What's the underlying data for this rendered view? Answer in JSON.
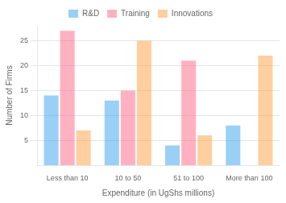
{
  "chart_data": {
    "type": "bar",
    "categories": [
      "Less than 10",
      "10 to 50",
      "51 to 100",
      "More than 100"
    ],
    "series": [
      {
        "name": "R&D",
        "values": [
          14,
          13,
          4,
          8
        ]
      },
      {
        "name": "Training",
        "values": [
          27,
          15,
          21,
          0
        ]
      },
      {
        "name": "Innovations",
        "values": [
          7,
          25,
          6,
          22
        ]
      }
    ],
    "xlabel": "Expenditure (in UgShs millions)",
    "ylabel": "Number of Firms",
    "ylim": [
      0,
      28
    ],
    "yticks": [
      5,
      10,
      15,
      20,
      25
    ],
    "grid": true,
    "legend": "top"
  }
}
